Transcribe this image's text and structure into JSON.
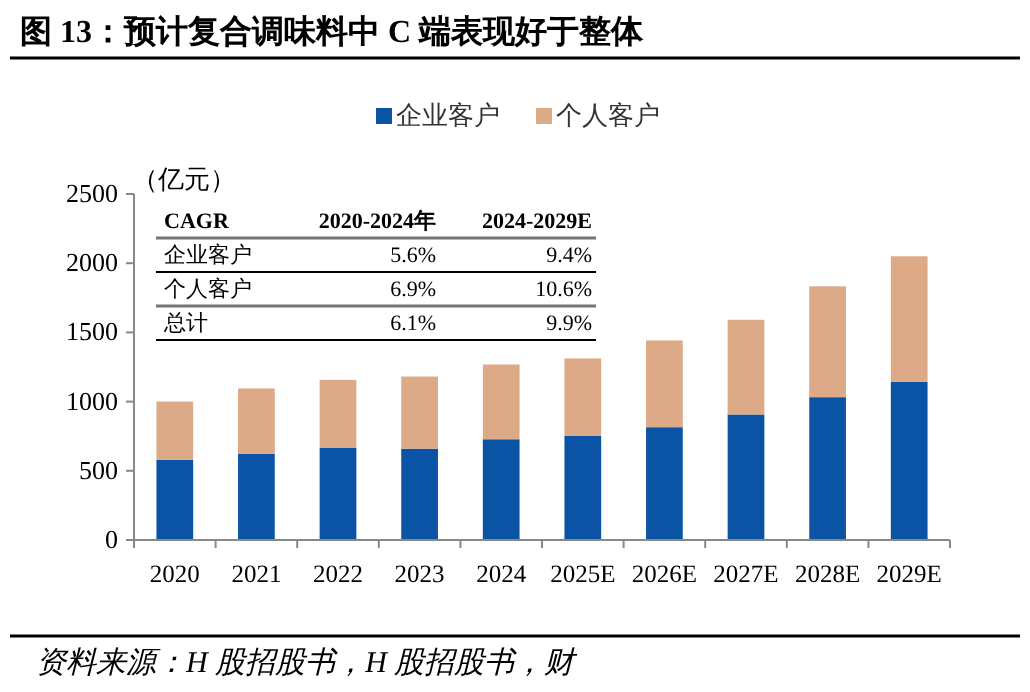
{
  "chart_data": {
    "type": "bar",
    "title": "图 13：预计复合调味料中 C 端表现好于整体",
    "ylabel": "（亿元）",
    "categories": [
      "2020",
      "2021",
      "2022",
      "2023",
      "2024",
      "2025E",
      "2026E",
      "2027E",
      "2028E",
      "2029E"
    ],
    "stacked": true,
    "series": [
      {
        "name": "企业客户",
        "color": "#0b53a5",
        "values": [
          580,
          622,
          665,
          660,
          728,
          752,
          815,
          907,
          1032,
          1143
        ]
      },
      {
        "name": "个人客户",
        "color": "#dcaa86",
        "values": [
          420,
          473,
          492,
          521,
          540,
          560,
          627,
          684,
          801,
          907
        ]
      }
    ],
    "ylim": [
      0,
      2500
    ],
    "yticks": [
      0,
      500,
      1000,
      1500,
      2000,
      2500
    ],
    "grid": false,
    "legend": "top",
    "annotations": [
      "CAGR",
      "2020-2024年",
      "2024-2029E",
      "企业客户",
      "5.6%",
      "9.4%",
      "个人客户",
      "6.9%",
      "10.6%",
      "总计",
      "6.1%",
      "9.9%",
      "资料来源：H 股招股书，H 股招股书，财"
    ]
  }
}
